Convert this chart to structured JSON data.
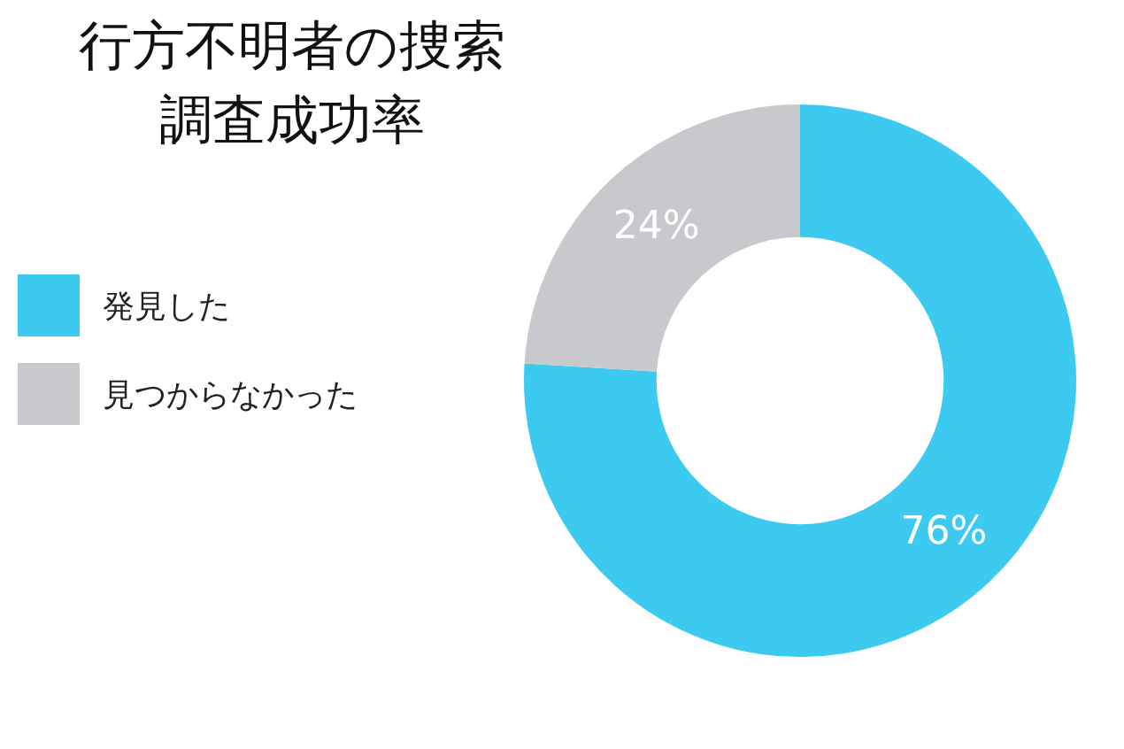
{
  "chart_data": {
    "type": "donut",
    "title": "行方不明者の捜索調査成功率",
    "categories": [
      "発見した",
      "見つからなかった"
    ],
    "values": [
      76,
      24
    ],
    "colors": [
      "#3ccaf0",
      "#c8c9cc"
    ],
    "value_labels": [
      "76%",
      "24%"
    ],
    "legend": "left"
  }
}
